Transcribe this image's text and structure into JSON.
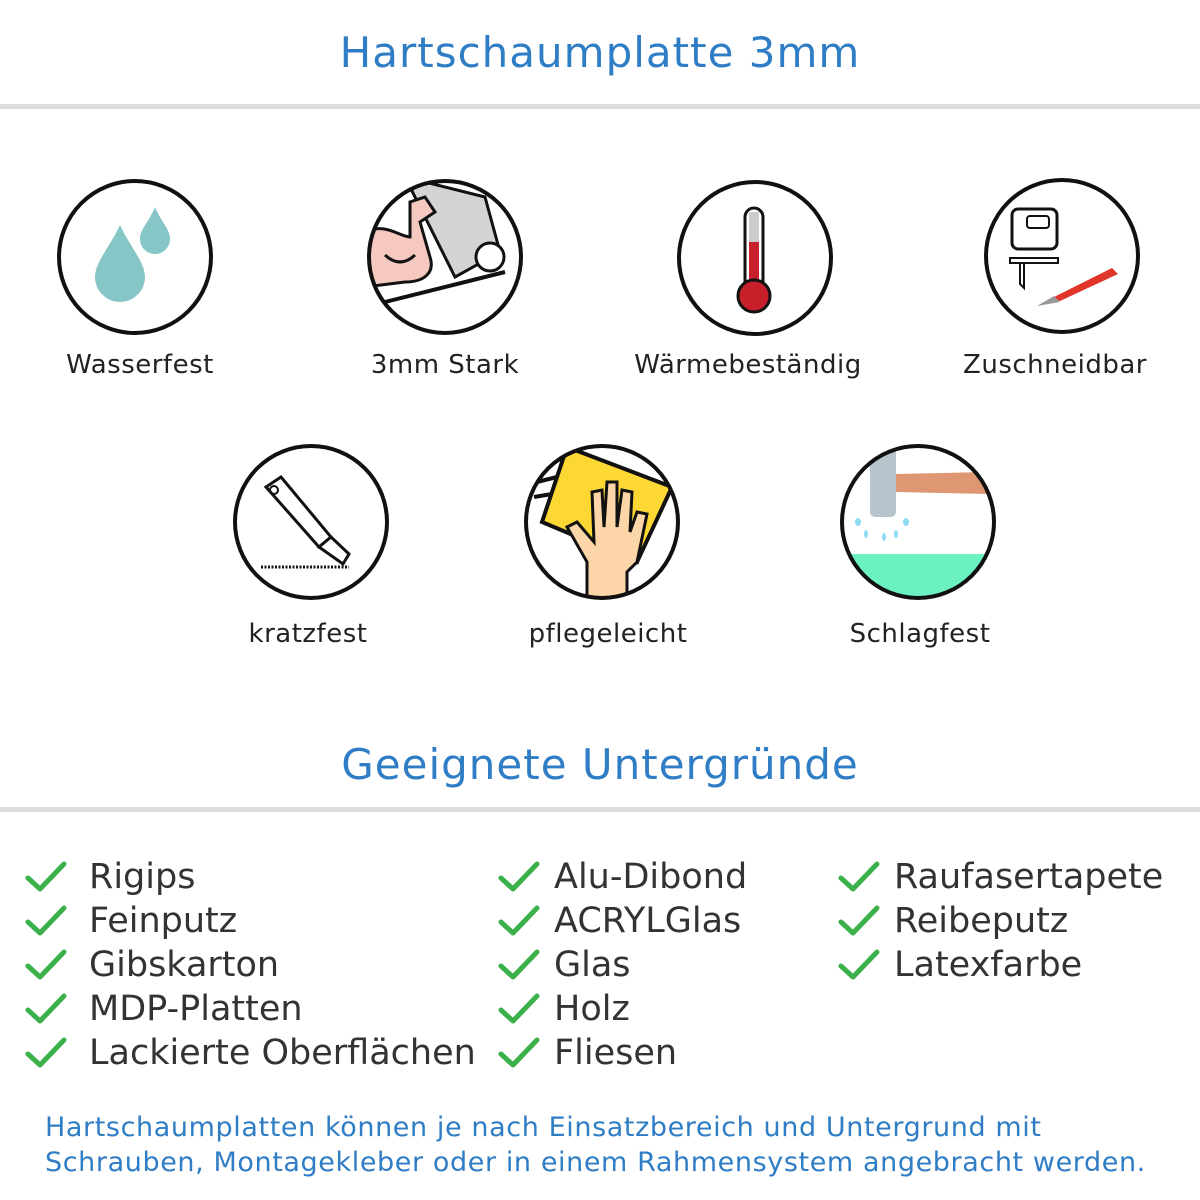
{
  "title": "Hartschaumplatte 3mm",
  "features": [
    {
      "label": "Wasserfest",
      "icon": "water-drops-icon"
    },
    {
      "label": "3mm Stark",
      "icon": "strong-arm-icon"
    },
    {
      "label": "Wärmebeständig",
      "icon": "thermometer-icon"
    },
    {
      "label": "Zuschneidbar",
      "icon": "jigsaw-knife-icon"
    },
    {
      "label": "kratzfest",
      "icon": "cutter-knife-icon"
    },
    {
      "label": "pflegeleicht",
      "icon": "cleaning-hand-icon"
    },
    {
      "label": "Schlagfest",
      "icon": "hammer-icon"
    }
  ],
  "subtitle": "Geeignete Untergründe",
  "surfaces": {
    "col1": [
      "Rigips",
      "Feinputz",
      "Gibskarton",
      "MDP-Platten",
      "Lackierte Oberflächen"
    ],
    "col2": [
      "Alu-Dibond",
      "ACRYLGlas",
      "Glas",
      "Holz",
      "Fliesen"
    ],
    "col3": [
      "Raufasertapete",
      "Reibeputz",
      "Latexfarbe"
    ]
  },
  "footer": {
    "line1": "Hartschaumplatten können je nach Einsatzbereich und Untergrund mit",
    "line2": "Schrauben, Montagekleber oder in einem Rahmensystem angebracht werden."
  },
  "colors": {
    "accent": "#2f7dc5",
    "check": "#3cb04a"
  }
}
